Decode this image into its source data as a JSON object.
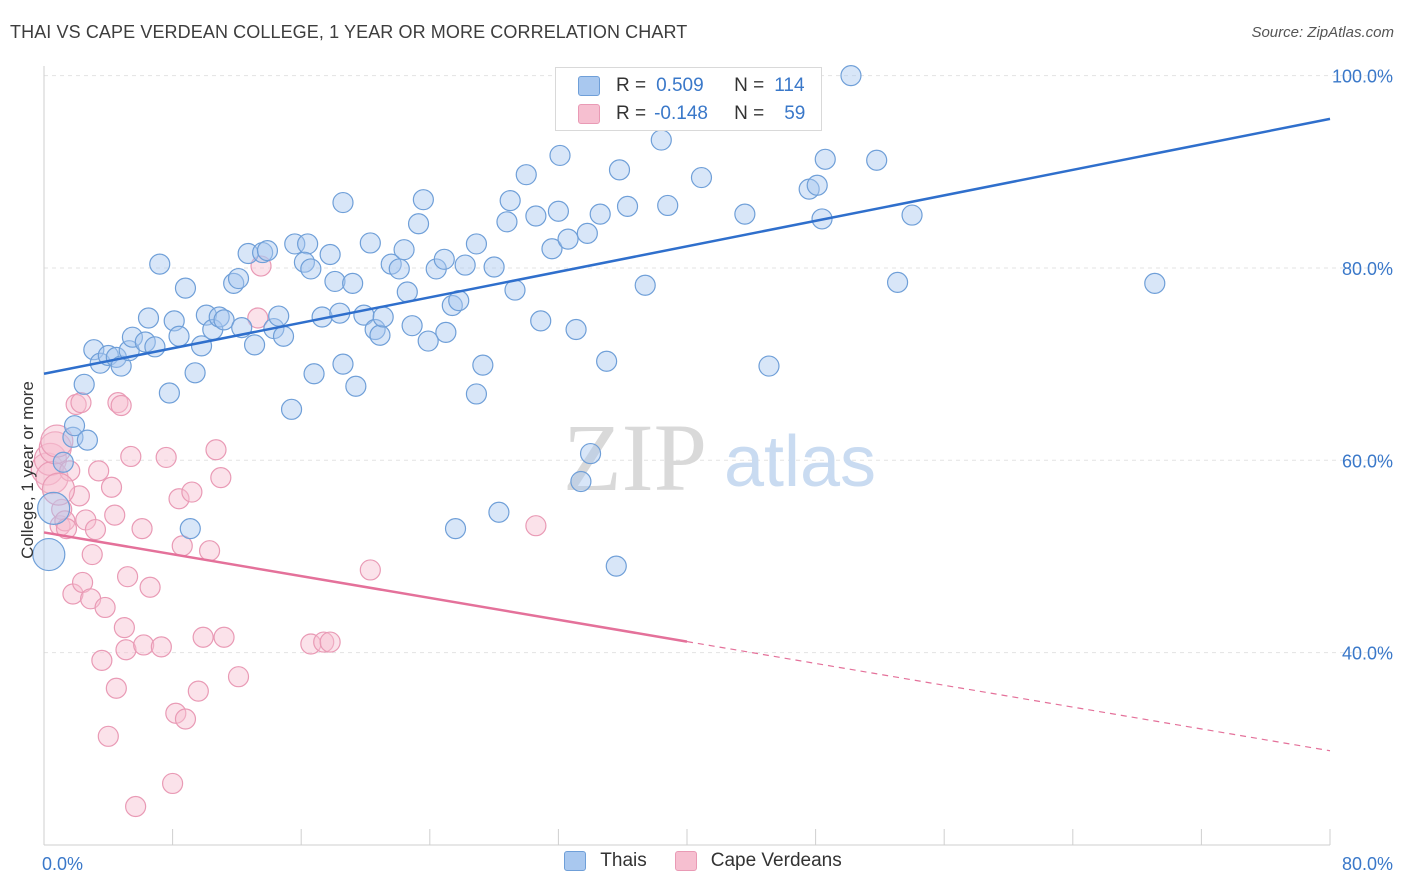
{
  "header": {
    "title": "THAI VS CAPE VERDEAN COLLEGE, 1 YEAR OR MORE CORRELATION CHART",
    "source": "Source: ZipAtlas.com"
  },
  "legend": {
    "rows": [
      {
        "r_label": "R =",
        "r_value": "0.509",
        "n_label": "N =",
        "n_value": "114"
      },
      {
        "r_label": "R =",
        "r_value": "-0.148",
        "n_label": "N =",
        "n_value": "59"
      }
    ]
  },
  "bottom_legend": {
    "items": [
      "Thais",
      "Cape Verdeans"
    ]
  },
  "watermark": {
    "zip": "ZIP",
    "atlas": "atlas"
  },
  "colors": {
    "thai_fill": "#a9c8ef",
    "thai_stroke": "#6f9fd8",
    "thai_line": "#2f6fcc",
    "cv_fill": "#f6bfd0",
    "cv_stroke": "#e99ab5",
    "cv_line": "#e4719a",
    "tick_label": "#3a78c9",
    "grid": "#e3e3e3"
  },
  "chart_data": {
    "type": "scatter",
    "title": "THAI VS CAPE VERDEAN COLLEGE, 1 YEAR OR MORE CORRELATION CHART",
    "xlabel": "",
    "ylabel": "College, 1 year or more",
    "xlim": [
      0,
      80
    ],
    "ylim": [
      20,
      101
    ],
    "x_tick_labels": [
      "0.0%",
      "80.0%"
    ],
    "y_tick_labels": [
      "40.0%",
      "60.0%",
      "80.0%",
      "100.0%"
    ],
    "y_ticks": [
      40,
      60,
      80,
      100
    ],
    "grid": true,
    "series": [
      {
        "name": "Thais",
        "r": 0.509,
        "n": 114,
        "trend": {
          "x0": 0,
          "y0": 69.0,
          "x1": 80,
          "y1": 95.5,
          "dashed_from": null
        },
        "points": [
          [
            0.3,
            50.2
          ],
          [
            0.6,
            55.0
          ],
          [
            1.2,
            59.8
          ],
          [
            1.8,
            62.4
          ],
          [
            1.9,
            63.6
          ],
          [
            2.5,
            67.9
          ],
          [
            2.7,
            62.1
          ],
          [
            3.1,
            71.5
          ],
          [
            3.5,
            70.1
          ],
          [
            4.0,
            70.9
          ],
          [
            4.5,
            70.7
          ],
          [
            4.8,
            69.8
          ],
          [
            5.3,
            71.4
          ],
          [
            5.5,
            72.8
          ],
          [
            6.3,
            72.3
          ],
          [
            6.5,
            74.8
          ],
          [
            6.9,
            71.8
          ],
          [
            7.2,
            80.4
          ],
          [
            7.8,
            67.0
          ],
          [
            8.1,
            74.5
          ],
          [
            8.4,
            72.9
          ],
          [
            8.8,
            77.9
          ],
          [
            9.4,
            69.1
          ],
          [
            9.8,
            71.9
          ],
          [
            10.1,
            75.1
          ],
          [
            10.5,
            73.6
          ],
          [
            10.9,
            74.9
          ],
          [
            11.2,
            74.6
          ],
          [
            11.8,
            78.4
          ],
          [
            12.1,
            78.9
          ],
          [
            12.3,
            73.8
          ],
          [
            12.7,
            81.5
          ],
          [
            13.1,
            72.0
          ],
          [
            13.6,
            81.6
          ],
          [
            13.9,
            81.8
          ],
          [
            14.3,
            73.7
          ],
          [
            14.6,
            75.0
          ],
          [
            14.9,
            72.9
          ],
          [
            15.6,
            82.5
          ],
          [
            15.4,
            65.3
          ],
          [
            16.4,
            82.5
          ],
          [
            16.2,
            80.6
          ],
          [
            16.6,
            79.9
          ],
          [
            16.8,
            69.0
          ],
          [
            17.3,
            74.9
          ],
          [
            17.8,
            81.4
          ],
          [
            18.1,
            78.6
          ],
          [
            18.4,
            75.3
          ],
          [
            18.6,
            86.8
          ],
          [
            19.2,
            78.4
          ],
          [
            19.4,
            67.7
          ],
          [
            19.9,
            75.1
          ],
          [
            20.3,
            82.6
          ],
          [
            20.6,
            73.6
          ],
          [
            20.9,
            73.0
          ],
          [
            21.1,
            74.9
          ],
          [
            21.6,
            80.4
          ],
          [
            22.1,
            79.9
          ],
          [
            22.4,
            81.9
          ],
          [
            22.6,
            77.5
          ],
          [
            22.9,
            74.0
          ],
          [
            23.3,
            84.6
          ],
          [
            23.6,
            87.1
          ],
          [
            24.4,
            79.9
          ],
          [
            24.9,
            80.9
          ],
          [
            25.0,
            73.3
          ],
          [
            25.4,
            76.1
          ],
          [
            25.8,
            76.6
          ],
          [
            26.2,
            80.3
          ],
          [
            26.9,
            82.5
          ],
          [
            26.9,
            66.9
          ],
          [
            27.3,
            69.9
          ],
          [
            28.0,
            80.1
          ],
          [
            28.3,
            54.6
          ],
          [
            28.8,
            84.8
          ],
          [
            29.0,
            87.0
          ],
          [
            29.3,
            77.7
          ],
          [
            30.0,
            89.7
          ],
          [
            30.6,
            85.4
          ],
          [
            30.9,
            74.5
          ],
          [
            31.6,
            82.0
          ],
          [
            32.0,
            85.9
          ],
          [
            32.1,
            91.7
          ],
          [
            32.6,
            83.0
          ],
          [
            33.1,
            73.6
          ],
          [
            33.8,
            83.6
          ],
          [
            34.6,
            85.6
          ],
          [
            35.0,
            70.3
          ],
          [
            35.6,
            49.0
          ],
          [
            35.8,
            90.2
          ],
          [
            36.3,
            86.4
          ],
          [
            37.4,
            78.2
          ],
          [
            38.4,
            93.3
          ],
          [
            38.8,
            86.5
          ],
          [
            40.9,
            89.4
          ],
          [
            43.6,
            85.6
          ],
          [
            45.1,
            69.8
          ],
          [
            47.6,
            88.2
          ],
          [
            48.1,
            88.6
          ],
          [
            48.4,
            85.1
          ],
          [
            48.6,
            91.3
          ],
          [
            50.2,
            100.0
          ],
          [
            51.8,
            91.2
          ],
          [
            53.1,
            78.5
          ],
          [
            54.0,
            85.5
          ],
          [
            69.1,
            78.4
          ],
          [
            18.6,
            70.0
          ],
          [
            9.1,
            52.9
          ],
          [
            25.6,
            52.9
          ],
          [
            34.0,
            60.7
          ],
          [
            33.4,
            57.8
          ],
          [
            23.9,
            72.4
          ]
        ]
      },
      {
        "name": "Cape Verdeans",
        "r": -0.148,
        "n": 59,
        "trend": {
          "x0": 0,
          "y0": 52.5,
          "x1": 80,
          "y1": 29.8,
          "dashed_from": 40
        },
        "points": [
          [
            0.2,
            59.1
          ],
          [
            0.4,
            60.1
          ],
          [
            0.5,
            58.2
          ],
          [
            0.7,
            61.3
          ],
          [
            0.8,
            62.0
          ],
          [
            1.0,
            53.2
          ],
          [
            1.1,
            54.9
          ],
          [
            1.3,
            53.7
          ],
          [
            1.4,
            52.9
          ],
          [
            1.6,
            58.9
          ],
          [
            1.8,
            46.1
          ],
          [
            2.0,
            65.8
          ],
          [
            2.2,
            56.3
          ],
          [
            2.4,
            47.3
          ],
          [
            2.6,
            53.8
          ],
          [
            2.9,
            45.6
          ],
          [
            3.0,
            50.2
          ],
          [
            3.2,
            52.8
          ],
          [
            3.4,
            58.9
          ],
          [
            3.6,
            39.2
          ],
          [
            3.8,
            44.7
          ],
          [
            4.0,
            31.3
          ],
          [
            4.2,
            57.2
          ],
          [
            4.4,
            54.3
          ],
          [
            4.5,
            36.3
          ],
          [
            4.6,
            66.0
          ],
          [
            4.8,
            65.7
          ],
          [
            5.0,
            42.6
          ],
          [
            5.1,
            40.3
          ],
          [
            5.2,
            47.9
          ],
          [
            5.4,
            60.4
          ],
          [
            5.7,
            24.0
          ],
          [
            6.1,
            52.9
          ],
          [
            6.2,
            40.8
          ],
          [
            6.6,
            46.8
          ],
          [
            7.3,
            40.6
          ],
          [
            7.6,
            60.3
          ],
          [
            8.0,
            26.4
          ],
          [
            8.2,
            33.7
          ],
          [
            8.4,
            56.0
          ],
          [
            8.6,
            51.1
          ],
          [
            8.8,
            33.1
          ],
          [
            9.2,
            56.7
          ],
          [
            9.6,
            36.0
          ],
          [
            9.9,
            41.6
          ],
          [
            10.3,
            50.6
          ],
          [
            10.7,
            61.1
          ],
          [
            11.0,
            58.2
          ],
          [
            11.2,
            41.6
          ],
          [
            12.1,
            37.5
          ],
          [
            13.3,
            74.8
          ],
          [
            13.5,
            80.2
          ],
          [
            16.6,
            40.9
          ],
          [
            17.4,
            41.1
          ],
          [
            17.8,
            41.1
          ],
          [
            20.3,
            48.6
          ],
          [
            30.6,
            53.2
          ],
          [
            0.9,
            57.0
          ],
          [
            2.3,
            66.0
          ]
        ]
      }
    ]
  }
}
